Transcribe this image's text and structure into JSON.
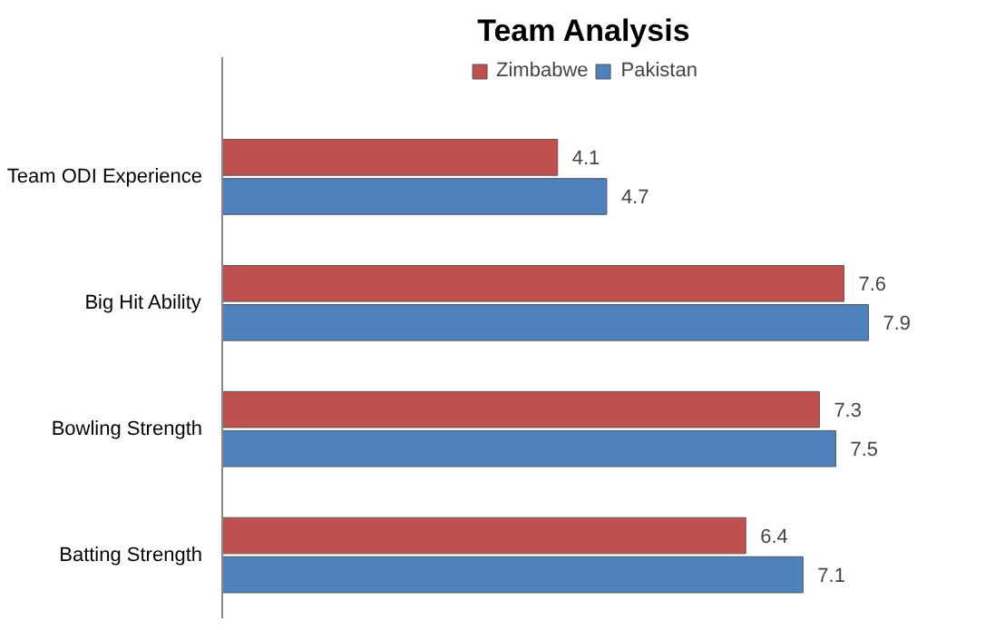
{
  "chart_data": {
    "type": "bar",
    "orientation": "horizontal",
    "title": "Team Analysis",
    "categories": [
      "Team ODI Experience",
      "Big Hit Ability",
      "Bowling Strength",
      "Batting Strength"
    ],
    "series": [
      {
        "name": "Zimbabwe",
        "color": "#c0504d",
        "values": [
          4.1,
          7.6,
          7.3,
          6.4
        ]
      },
      {
        "name": "Pakistan",
        "color": "#4f81bd",
        "values": [
          4.7,
          7.9,
          7.5,
          7.1
        ]
      }
    ],
    "data_labels": true,
    "legend": "top",
    "grid": false
  }
}
